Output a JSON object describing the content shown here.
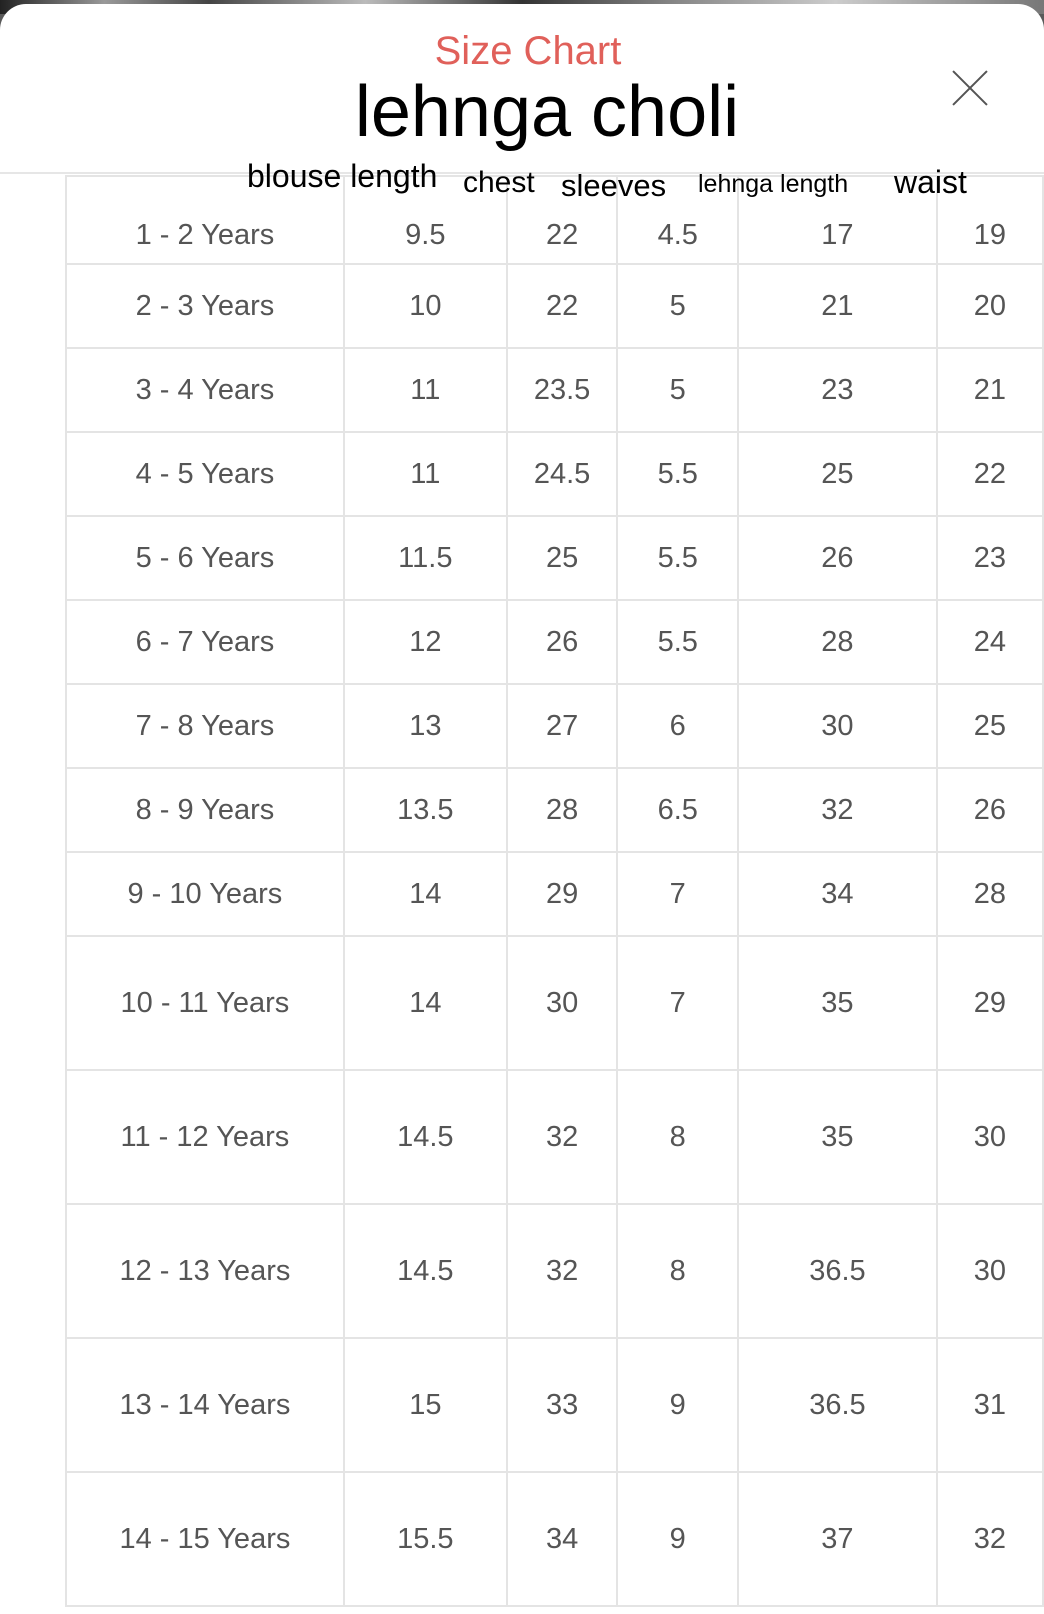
{
  "modal": {
    "title": "Size Chart",
    "close_icon": "close-x-icon",
    "title_color": "#e0605a"
  },
  "overlay": {
    "title": "lehnga choli",
    "columns": [
      "blouse length",
      "chest",
      "sleeves",
      "lehnga length",
      "waist"
    ]
  },
  "rows": [
    [
      "1 - 2 Years",
      "9.5",
      "22",
      "4.5",
      "17",
      "19"
    ],
    [
      "2 - 3 Years",
      "10",
      "22",
      "5",
      "21",
      "20"
    ],
    [
      "3 - 4 Years",
      "11",
      "23.5",
      "5",
      "23",
      "21"
    ],
    [
      "4 - 5 Years",
      "11",
      "24.5",
      "5.5",
      "25",
      "22"
    ],
    [
      "5 - 6 Years",
      "11.5",
      "25",
      "5.5",
      "26",
      "23"
    ],
    [
      "6 - 7 Years",
      "12",
      "26",
      "5.5",
      "28",
      "24"
    ],
    [
      "7 - 8 Years",
      "13",
      "27",
      "6",
      "30",
      "25"
    ],
    [
      "8 - 9 Years",
      "13.5",
      "28",
      "6.5",
      "32",
      "26"
    ],
    [
      "9 - 10 Years",
      "14",
      "29",
      "7",
      "34",
      "28"
    ],
    [
      "10 - 11 Years",
      "14",
      "30",
      "7",
      "35",
      "29"
    ],
    [
      "11 - 12 Years",
      "14.5",
      "32",
      "8",
      "35",
      "30"
    ],
    [
      "12 - 13 Years",
      "14.5",
      "32",
      "8",
      "36.5",
      "30"
    ],
    [
      "13 - 14 Years",
      "15",
      "33",
      "9",
      "36.5",
      "31"
    ],
    [
      "14 - 15 Years",
      "15.5",
      "34",
      "9",
      "37",
      "32"
    ]
  ]
}
